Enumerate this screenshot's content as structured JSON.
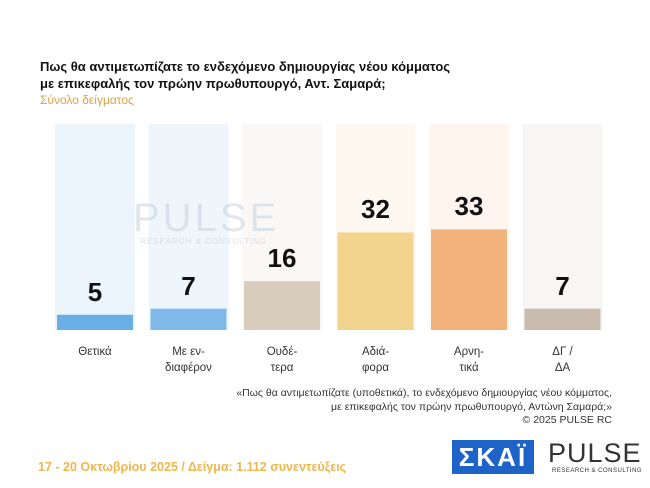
{
  "chart_data": {
    "type": "bar",
    "title": "Πως θα αντιμετωπίζατε το ενδεχόμενο δημιουργίας νέου κόμματος\nμε επικεφαλής τον πρώην πρωθυπουργό, Αντ. Σαμαρά;",
    "subtitle": "Σύνολο δείγματος",
    "categories": [
      "Θετικά",
      "Με εν-\nδιαφέρον",
      "Ουδέ-\nτερα",
      "Αδιά-\nφορα",
      "Αρνη-\nτικά",
      "ΔΓ /\nΔΑ"
    ],
    "values": [
      5,
      7,
      16,
      32,
      33,
      7
    ],
    "colors": [
      "#6aaee8",
      "#7fb9ea",
      "#d8ccbd",
      "#f3d48e",
      "#f2b27c",
      "#c9bcae"
    ],
    "watermark": "PULSE",
    "watermark_sub": "RESEARCH & CONSULTING",
    "note": "«Πως θα αντιμετωπίζατε (υποθετικά), το ενδεχόμενο δημιουργίας νέου κόμματος,\nμε επικεφαλής τον πρώην πρωθυπουργό, Αντώνη Σαμαρά;»",
    "copyright": "© 2025 PULSE RC",
    "footer": "17 - 20 Οκτωβρίου 2025  /  Δείγμα:  1.112 συνεντεύξεις",
    "logo_skai": "ΣΚΑΪ",
    "logo_pulse": "PULSE",
    "logo_pulse_sub": "RESEARCH & CONSULTING"
  }
}
